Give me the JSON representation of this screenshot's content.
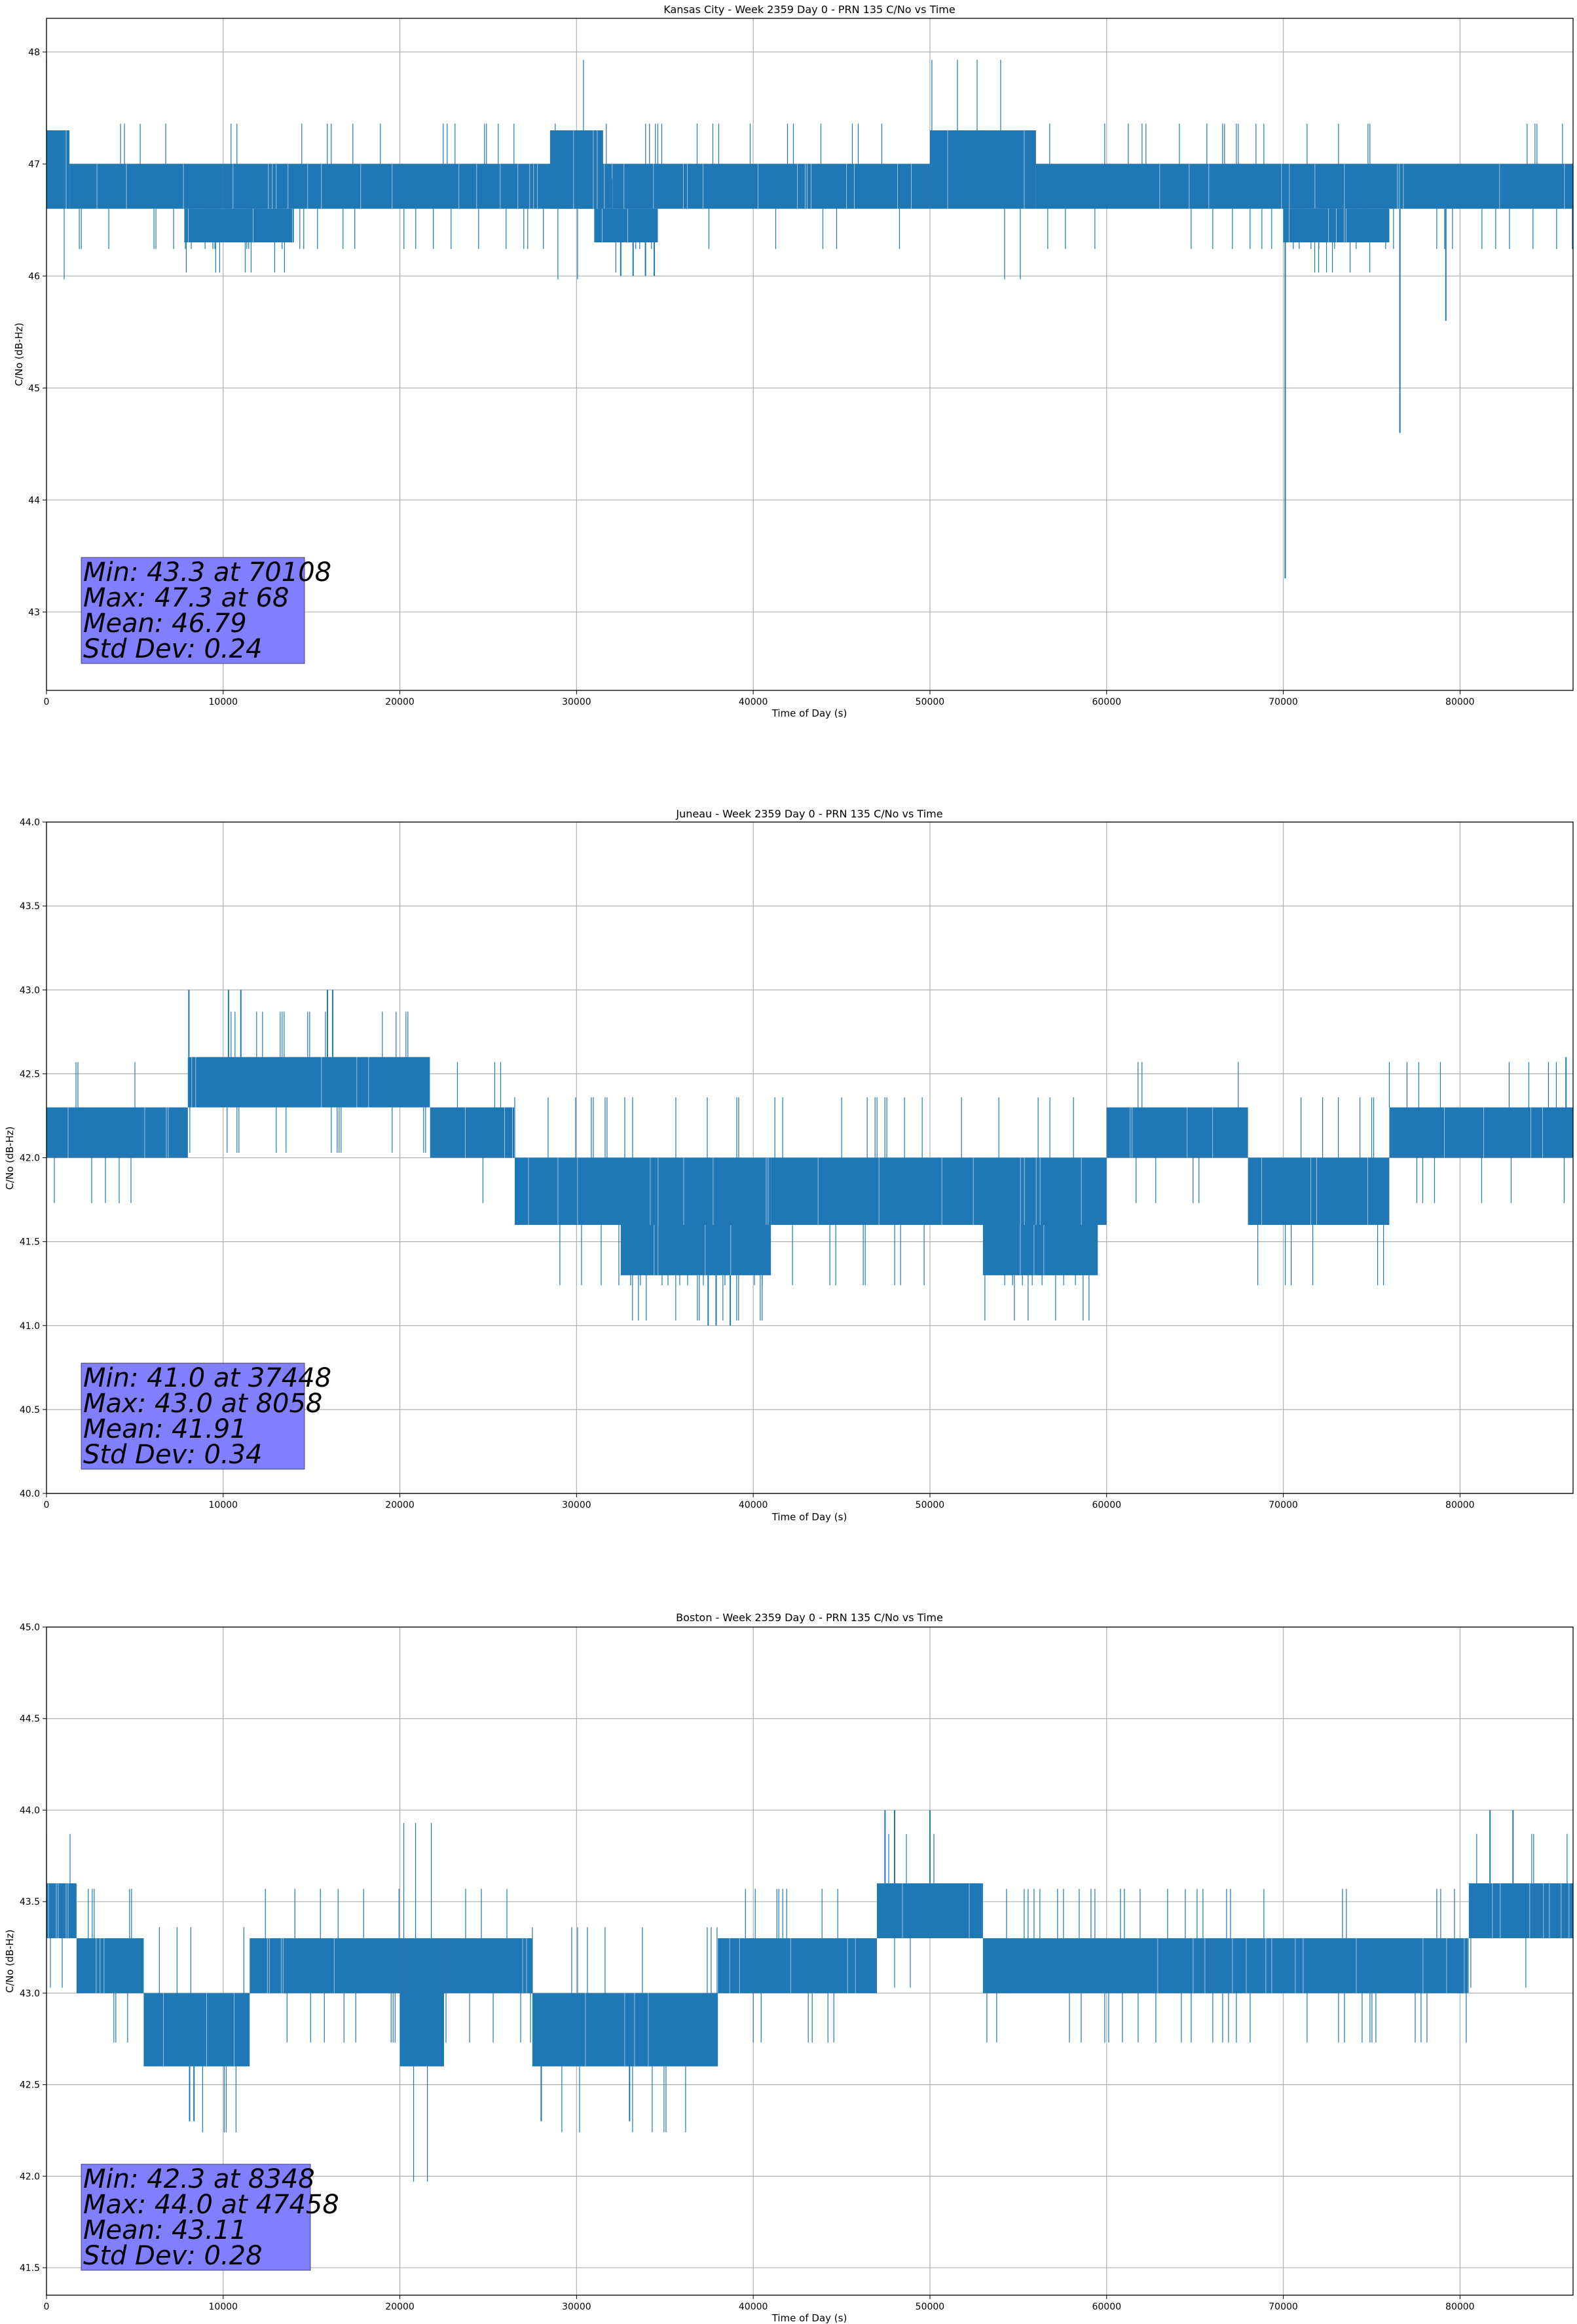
{
  "figure": {
    "series_color": "#1f77b4",
    "stats_box_color": "#8080ff",
    "grid_color": "#b0b0b0"
  },
  "chart_data": [
    {
      "type": "line",
      "title": "Kansas City - Week 2359 Day 0 - PRN 135 C/No vs Time",
      "xlabel": "Time of Day (s)",
      "ylabel": "C/No (dB-Hz)",
      "xlim": [
        0,
        86400
      ],
      "ylim": [
        42.3,
        48.3
      ],
      "x_ticks": [
        0,
        10000,
        20000,
        30000,
        40000,
        50000,
        60000,
        70000,
        80000
      ],
      "y_ticks": [
        43,
        44,
        45,
        46,
        47,
        48
      ],
      "y_tick_labels": [
        "43",
        "44",
        "45",
        "46",
        "47",
        "48"
      ],
      "grid": true,
      "series": [
        {
          "name": "C/No",
          "segments": [
            {
              "x0": 0,
              "x1": 1300,
              "low": 46.6,
              "high": 47.3
            },
            {
              "x0": 1300,
              "x1": 10000,
              "low": 46.6,
              "high": 47.0
            },
            {
              "x0": 7800,
              "x1": 14000,
              "low": 46.3,
              "high": 46.6
            },
            {
              "x0": 10000,
              "x1": 34600,
              "low": 46.6,
              "high": 47.0
            },
            {
              "x0": 28500,
              "x1": 31500,
              "low": 46.6,
              "high": 47.3
            },
            {
              "x0": 31000,
              "x1": 34600,
              "low": 46.3,
              "high": 46.6
            },
            {
              "x0": 34600,
              "x1": 50000,
              "low": 46.6,
              "high": 47.0
            },
            {
              "x0": 50000,
              "x1": 56000,
              "low": 46.6,
              "high": 47.3
            },
            {
              "x0": 56000,
              "x1": 86400,
              "low": 46.6,
              "high": 47.0
            },
            {
              "x0": 70000,
              "x1": 76000,
              "low": 46.3,
              "high": 46.6
            }
          ],
          "spikes": [
            {
              "x": 32500,
              "low": 46.0,
              "high": 46.6
            },
            {
              "x": 33200,
              "low": 46.0,
              "high": 46.6
            },
            {
              "x": 33900,
              "low": 46.0,
              "high": 46.6
            },
            {
              "x": 34400,
              "low": 46.0,
              "high": 46.3
            },
            {
              "x": 70108,
              "low": 43.3,
              "high": 46.6
            },
            {
              "x": 76600,
              "low": 44.6,
              "high": 46.6
            },
            {
              "x": 79200,
              "low": 45.6,
              "high": 46.6
            }
          ]
        }
      ],
      "stats": {
        "min_label": "Min: 43.3 at 70108",
        "max_label": "Max: 47.3 at 68",
        "mean_label": "Mean: 46.79",
        "std_label": "Std Dev: 0.24"
      }
    },
    {
      "type": "line",
      "title": "Juneau - Week 2359 Day 0 - PRN 135 C/No vs Time",
      "xlabel": "Time of Day (s)",
      "ylabel": "C/No (dB-Hz)",
      "xlim": [
        0,
        86400
      ],
      "ylim": [
        40.0,
        44.0
      ],
      "x_ticks": [
        0,
        10000,
        20000,
        30000,
        40000,
        50000,
        60000,
        70000,
        80000
      ],
      "y_ticks": [
        40.0,
        40.5,
        41.0,
        41.5,
        42.0,
        42.5,
        43.0,
        43.5,
        44.0
      ],
      "y_tick_labels": [
        "40.0",
        "40.5",
        "41.0",
        "41.5",
        "42.0",
        "42.5",
        "43.0",
        "43.5",
        "44.0"
      ],
      "grid": true,
      "series": [
        {
          "name": "C/No",
          "segments": [
            {
              "x0": 0,
              "x1": 8000,
              "low": 42.0,
              "high": 42.3
            },
            {
              "x0": 8000,
              "x1": 21700,
              "low": 42.3,
              "high": 42.6
            },
            {
              "x0": 21700,
              "x1": 26500,
              "low": 42.0,
              "high": 42.3
            },
            {
              "x0": 26500,
              "x1": 41000,
              "low": 41.6,
              "high": 42.0
            },
            {
              "x0": 32500,
              "x1": 41000,
              "low": 41.3,
              "high": 41.6
            },
            {
              "x0": 41000,
              "x1": 60000,
              "low": 41.6,
              "high": 42.0
            },
            {
              "x0": 53000,
              "x1": 59500,
              "low": 41.3,
              "high": 41.6
            },
            {
              "x0": 60000,
              "x1": 68000,
              "low": 42.0,
              "high": 42.3
            },
            {
              "x0": 68000,
              "x1": 76000,
              "low": 41.6,
              "high": 42.0
            },
            {
              "x0": 76000,
              "x1": 86400,
              "low": 42.0,
              "high": 42.3
            }
          ],
          "spikes": [
            {
              "x": 8058,
              "low": 42.6,
              "high": 43.0
            },
            {
              "x": 10300,
              "low": 42.6,
              "high": 43.0
            },
            {
              "x": 11000,
              "low": 42.6,
              "high": 43.0
            },
            {
              "x": 15900,
              "low": 42.6,
              "high": 43.0
            },
            {
              "x": 16200,
              "low": 42.6,
              "high": 43.0
            },
            {
              "x": 37448,
              "low": 41.0,
              "high": 41.3
            },
            {
              "x": 37900,
              "low": 41.0,
              "high": 41.3
            },
            {
              "x": 38700,
              "low": 41.0,
              "high": 41.3
            },
            {
              "x": 86000,
              "low": 42.3,
              "high": 42.6
            }
          ]
        }
      ],
      "stats": {
        "min_label": "Min: 41.0 at 37448",
        "max_label": "Max: 43.0 at 8058",
        "mean_label": "Mean: 41.91",
        "std_label": "Std Dev: 0.34"
      }
    },
    {
      "type": "line",
      "title": "Boston - Week 2359 Day 0 - PRN 135 C/No vs Time",
      "xlabel": "Time of Day (s)",
      "ylabel": "C/No (dB-Hz)",
      "xlim": [
        0,
        86400
      ],
      "ylim": [
        41.35,
        45.0
      ],
      "x_ticks": [
        0,
        10000,
        20000,
        30000,
        40000,
        50000,
        60000,
        70000,
        80000
      ],
      "y_ticks": [
        41.5,
        42.0,
        42.5,
        43.0,
        43.5,
        44.0,
        44.5,
        45.0
      ],
      "y_tick_labels": [
        "41.5",
        "42.0",
        "42.5",
        "43.0",
        "43.5",
        "44.0",
        "44.5",
        "45.0"
      ],
      "grid": true,
      "series": [
        {
          "name": "C/No",
          "segments": [
            {
              "x0": 0,
              "x1": 1700,
              "low": 43.3,
              "high": 43.6
            },
            {
              "x0": 1700,
              "x1": 5500,
              "low": 43.0,
              "high": 43.3
            },
            {
              "x0": 5500,
              "x1": 11500,
              "low": 42.6,
              "high": 43.0
            },
            {
              "x0": 11500,
              "x1": 20000,
              "low": 43.0,
              "high": 43.3
            },
            {
              "x0": 20000,
              "x1": 22500,
              "low": 42.6,
              "high": 43.3
            },
            {
              "x0": 22500,
              "x1": 27500,
              "low": 43.0,
              "high": 43.3
            },
            {
              "x0": 27500,
              "x1": 38000,
              "low": 42.6,
              "high": 43.0
            },
            {
              "x0": 38000,
              "x1": 47000,
              "low": 43.0,
              "high": 43.3
            },
            {
              "x0": 47000,
              "x1": 53000,
              "low": 43.3,
              "high": 43.6
            },
            {
              "x0": 53000,
              "x1": 80500,
              "low": 43.0,
              "high": 43.3
            },
            {
              "x0": 80500,
              "x1": 86400,
              "low": 43.3,
              "high": 43.6
            }
          ],
          "spikes": [
            {
              "x": 8348,
              "low": 42.3,
              "high": 42.6
            },
            {
              "x": 8100,
              "low": 42.3,
              "high": 42.6
            },
            {
              "x": 28000,
              "low": 42.3,
              "high": 42.6
            },
            {
              "x": 33000,
              "low": 42.3,
              "high": 42.6
            },
            {
              "x": 47458,
              "low": 43.6,
              "high": 44.0
            },
            {
              "x": 48000,
              "low": 43.6,
              "high": 44.0
            },
            {
              "x": 50000,
              "low": 43.6,
              "high": 44.0
            },
            {
              "x": 81700,
              "low": 43.6,
              "high": 44.0
            },
            {
              "x": 83000,
              "low": 43.6,
              "high": 44.0
            }
          ]
        }
      ],
      "stats": {
        "min_label": "Min: 42.3 at 8348",
        "max_label": "Max: 44.0 at 47458",
        "mean_label": "Mean: 43.11",
        "std_label": "Std Dev: 0.28"
      }
    }
  ]
}
